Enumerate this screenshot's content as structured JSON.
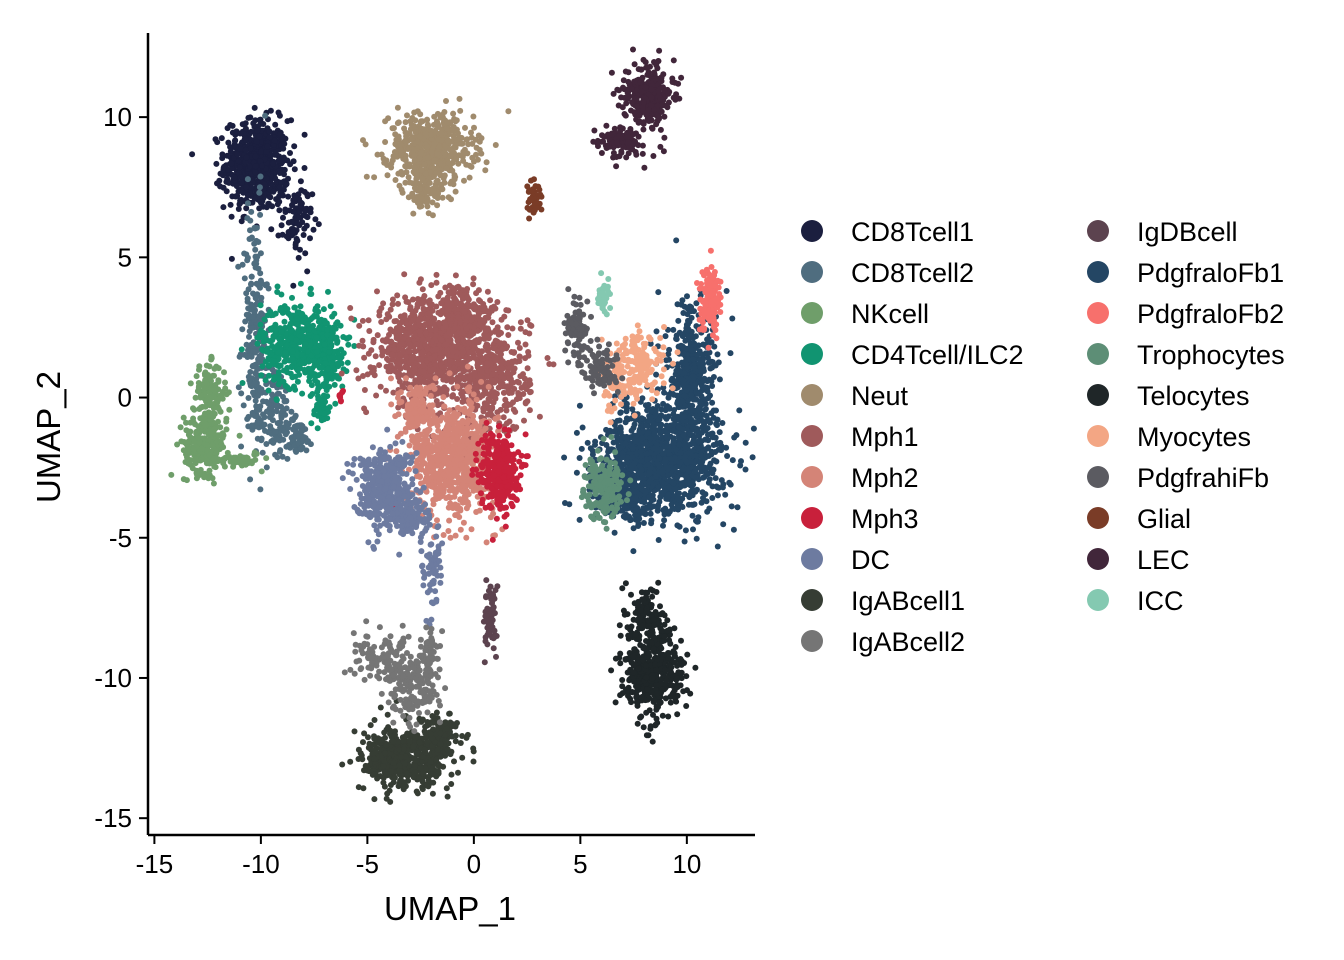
{
  "chart_data": {
    "type": "scatter",
    "title": "",
    "xlabel": "UMAP_1",
    "ylabel": "UMAP_2",
    "xlim": [
      -15.3,
      13.2
    ],
    "ylim": [
      -15.6,
      13.0
    ],
    "xticks": [
      -15,
      -10,
      -5,
      0,
      5,
      10
    ],
    "yticks": [
      -15,
      -10,
      -5,
      0,
      5,
      10
    ],
    "xtick_labels": [
      "-15",
      "-10",
      "-5",
      "0",
      "5",
      "10"
    ],
    "ytick_labels": [
      "-15",
      "-10",
      "-5",
      "0",
      "5",
      "10"
    ],
    "grid": false,
    "legend_position": "right",
    "legend_columns": 2,
    "series": [
      {
        "name": "CD8Tcell1",
        "color": "#1b1f3f",
        "clusters": [
          {
            "cx": -10.2,
            "cy": 8.3,
            "sx": 0.75,
            "sy": 0.8,
            "n": 620
          },
          {
            "cx": -8.3,
            "cy": 6.3,
            "sx": 0.35,
            "sy": 0.6,
            "n": 80
          }
        ]
      },
      {
        "name": "CD8Tcell2",
        "color": "#4f6d7f",
        "clusters": [
          {
            "cx": -10.3,
            "cy": 2.5,
            "sx": 0.3,
            "sy": 2.2,
            "n": 200
          },
          {
            "cx": -9.4,
            "cy": -0.5,
            "sx": 0.45,
            "sy": 0.9,
            "n": 120
          },
          {
            "cx": -8.3,
            "cy": -1.4,
            "sx": 0.4,
            "sy": 0.3,
            "n": 60
          }
        ]
      },
      {
        "name": "NKcell",
        "color": "#6f9e6a",
        "clusters": [
          {
            "cx": -12.6,
            "cy": -1.6,
            "sx": 0.5,
            "sy": 0.55,
            "n": 240
          },
          {
            "cx": -12.4,
            "cy": 0.2,
            "sx": 0.4,
            "sy": 0.5,
            "n": 110
          },
          {
            "cx": -11.0,
            "cy": -2.2,
            "sx": 0.5,
            "sy": 0.15,
            "n": 50
          }
        ]
      },
      {
        "name": "CD4Tcell/ILC2",
        "color": "#119471",
        "clusters": [
          {
            "cx": -8.2,
            "cy": 1.9,
            "sx": 0.9,
            "sy": 0.75,
            "n": 480
          },
          {
            "cx": -6.8,
            "cy": 1.4,
            "sx": 0.35,
            "sy": 0.6,
            "n": 120
          },
          {
            "cx": -7.2,
            "cy": -0.4,
            "sx": 0.25,
            "sy": 0.3,
            "n": 40
          }
        ]
      },
      {
        "name": "Neut",
        "color": "#a08b6d",
        "clusters": [
          {
            "cx": -2.0,
            "cy": 8.9,
            "sx": 1.0,
            "sy": 0.6,
            "n": 500
          },
          {
            "cx": -2.3,
            "cy": 7.4,
            "sx": 0.5,
            "sy": 0.45,
            "n": 100
          }
        ]
      },
      {
        "name": "Mph1",
        "color": "#9f5a5b",
        "clusters": [
          {
            "cx": -2.2,
            "cy": 1.7,
            "sx": 1.2,
            "sy": 0.9,
            "n": 800
          },
          {
            "cx": 0.8,
            "cy": 0.8,
            "sx": 0.9,
            "sy": 1.1,
            "n": 450
          },
          {
            "cx": -0.5,
            "cy": 3.0,
            "sx": 0.6,
            "sy": 0.5,
            "n": 150
          }
        ]
      },
      {
        "name": "Mph2",
        "color": "#d48477",
        "clusters": [
          {
            "cx": -1.0,
            "cy": -2.2,
            "sx": 1.0,
            "sy": 1.0,
            "n": 700
          },
          {
            "cx": -2.6,
            "cy": -0.4,
            "sx": 0.4,
            "sy": 0.5,
            "n": 120
          }
        ]
      },
      {
        "name": "Mph3",
        "color": "#c8203b",
        "clusters": [
          {
            "cx": 1.2,
            "cy": -2.6,
            "sx": 0.45,
            "sy": 0.7,
            "n": 300
          },
          {
            "cx": -3.7,
            "cy": -3.8,
            "sx": 0.1,
            "sy": 0.1,
            "n": 8
          },
          {
            "cx": -6.3,
            "cy": 0.1,
            "sx": 0.08,
            "sy": 0.15,
            "n": 8
          }
        ]
      },
      {
        "name": "DC",
        "color": "#6d7ba0",
        "clusters": [
          {
            "cx": -4.2,
            "cy": -3.2,
            "sx": 0.7,
            "sy": 0.7,
            "n": 400
          },
          {
            "cx": -3.0,
            "cy": -4.3,
            "sx": 0.5,
            "sy": 0.3,
            "n": 120
          },
          {
            "cx": -2.0,
            "cy": -6.2,
            "sx": 0.25,
            "sy": 0.9,
            "n": 60
          }
        ]
      },
      {
        "name": "IgABcell1",
        "color": "#363d34",
        "clusters": [
          {
            "cx": -3.2,
            "cy": -12.9,
            "sx": 1.0,
            "sy": 0.55,
            "n": 500
          },
          {
            "cx": -1.6,
            "cy": -12.0,
            "sx": 0.4,
            "sy": 0.4,
            "n": 120
          }
        ]
      },
      {
        "name": "IgABcell2",
        "color": "#757575",
        "clusters": [
          {
            "cx": -4.2,
            "cy": -9.4,
            "sx": 0.7,
            "sy": 0.45,
            "n": 120
          },
          {
            "cx": -2.8,
            "cy": -10.5,
            "sx": 0.6,
            "sy": 0.6,
            "n": 140
          },
          {
            "cx": -2.2,
            "cy": -9.3,
            "sx": 0.25,
            "sy": 0.5,
            "n": 60
          }
        ]
      },
      {
        "name": "IgDBcell",
        "color": "#5c434f",
        "clusters": [
          {
            "cx": 0.8,
            "cy": -7.9,
            "sx": 0.15,
            "sy": 0.6,
            "n": 70
          }
        ]
      },
      {
        "name": "PdgfraloFb1",
        "color": "#244664",
        "clusters": [
          {
            "cx": 8.8,
            "cy": -2.2,
            "sx": 1.4,
            "sy": 1.0,
            "n": 1100
          },
          {
            "cx": 10.2,
            "cy": 0.6,
            "sx": 0.6,
            "sy": 1.3,
            "n": 400
          },
          {
            "cx": 7.0,
            "cy": -3.4,
            "sx": 0.7,
            "sy": 0.5,
            "n": 200
          }
        ]
      },
      {
        "name": "PdgfraloFb2",
        "color": "#f7706c",
        "clusters": [
          {
            "cx": 11.1,
            "cy": 3.6,
            "sx": 0.25,
            "sy": 0.6,
            "n": 140
          }
        ]
      },
      {
        "name": "Trophocytes",
        "color": "#5d8e76",
        "clusters": [
          {
            "cx": 6.1,
            "cy": -3.2,
            "sx": 0.45,
            "sy": 0.55,
            "n": 180
          }
        ]
      },
      {
        "name": "Telocytes",
        "color": "#1f2628",
        "clusters": [
          {
            "cx": 8.4,
            "cy": -9.8,
            "sx": 0.7,
            "sy": 0.8,
            "n": 420
          },
          {
            "cx": 8.1,
            "cy": -7.8,
            "sx": 0.4,
            "sy": 0.5,
            "n": 120
          }
        ]
      },
      {
        "name": "Myocytes",
        "color": "#f3a684",
        "clusters": [
          {
            "cx": 7.8,
            "cy": 1.2,
            "sx": 0.6,
            "sy": 0.6,
            "n": 160
          },
          {
            "cx": 6.6,
            "cy": 0.5,
            "sx": 0.3,
            "sy": 0.5,
            "n": 60
          }
        ]
      },
      {
        "name": "PdgfrahiFb",
        "color": "#5b5b61",
        "clusters": [
          {
            "cx": 4.9,
            "cy": 2.4,
            "sx": 0.3,
            "sy": 0.5,
            "n": 100
          },
          {
            "cx": 6.0,
            "cy": 1.0,
            "sx": 0.4,
            "sy": 0.4,
            "n": 80
          }
        ]
      },
      {
        "name": "Glial",
        "color": "#7a3c27",
        "clusters": [
          {
            "cx": 2.8,
            "cy": 7.1,
            "sx": 0.15,
            "sy": 0.3,
            "n": 40
          }
        ]
      },
      {
        "name": "LEC",
        "color": "#41263a",
        "clusters": [
          {
            "cx": 8.2,
            "cy": 10.8,
            "sx": 0.55,
            "sy": 0.55,
            "n": 300
          },
          {
            "cx": 6.9,
            "cy": 9.1,
            "sx": 0.7,
            "sy": 0.3,
            "n": 90
          }
        ]
      },
      {
        "name": "ICC",
        "color": "#84c9b1",
        "clusters": [
          {
            "cx": 6.1,
            "cy": 3.6,
            "sx": 0.12,
            "sy": 0.35,
            "n": 35
          }
        ]
      }
    ]
  }
}
